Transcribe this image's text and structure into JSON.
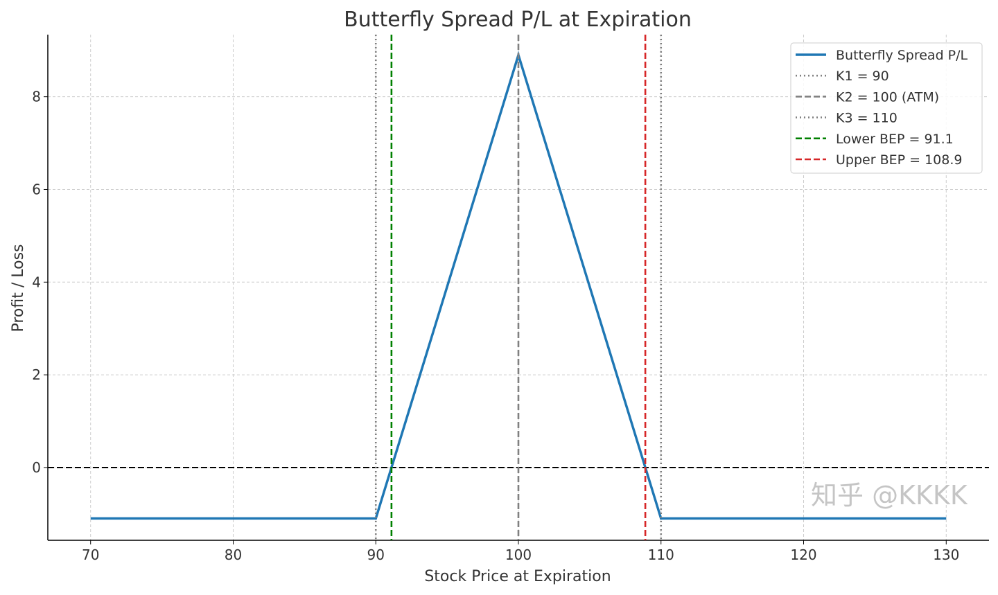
{
  "chart_data": {
    "type": "line",
    "title": "Butterfly Spread P/L at Expiration",
    "xlabel": "Stock Price at Expiration",
    "ylabel": "Profit / Loss",
    "xlim": [
      67,
      133
    ],
    "ylim": [
      -1.57,
      9.34
    ],
    "xticks": [
      70,
      80,
      90,
      100,
      110,
      120,
      130
    ],
    "yticks": [
      0,
      2,
      4,
      6,
      8
    ],
    "grid": true,
    "legend_position": "top-right",
    "series": [
      {
        "name": "Butterfly Spread P/L",
        "color": "#1f77b4",
        "style": "solid",
        "x": [
          70,
          90,
          100,
          110,
          130
        ],
        "y": [
          -1.1,
          -1.1,
          8.9,
          -1.1,
          -1.1
        ]
      }
    ],
    "vlines": [
      {
        "name": "K1 = 90",
        "x": 90,
        "color": "#808080",
        "style": "dotted"
      },
      {
        "name": "K2 = 100 (ATM)",
        "x": 100,
        "color": "#808080",
        "style": "dashed"
      },
      {
        "name": "K3 = 110",
        "x": 110,
        "color": "#808080",
        "style": "dotted"
      },
      {
        "name": "Lower BEP = 91.1",
        "x": 91.1,
        "color": "#008000",
        "style": "dashed"
      },
      {
        "name": "Upper BEP = 108.9",
        "x": 108.9,
        "color": "#d62728",
        "style": "dashed"
      }
    ],
    "hlines": [
      {
        "y": 0,
        "color": "#000000",
        "style": "dashed"
      }
    ]
  },
  "watermark": "知乎 @KKKK"
}
